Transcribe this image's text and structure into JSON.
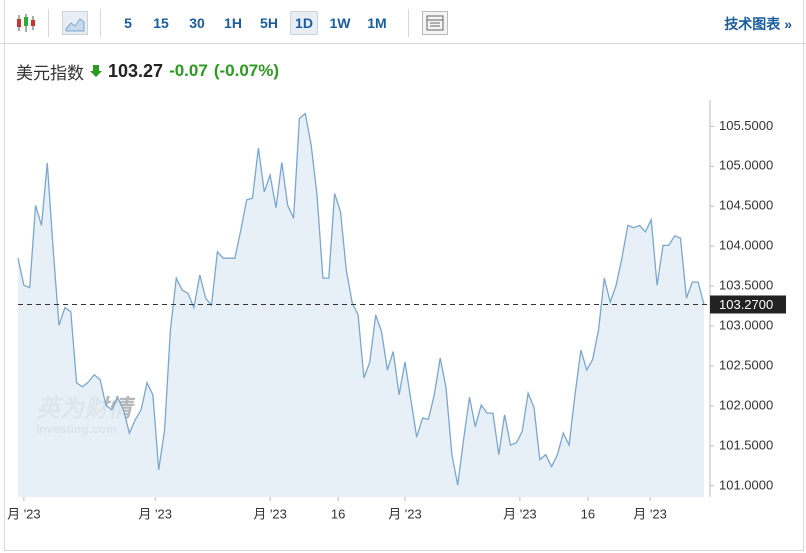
{
  "toolbar": {
    "intervals": [
      "5",
      "15",
      "30",
      "1H",
      "5H",
      "1D",
      "1W",
      "1M"
    ],
    "active_interval": "1D",
    "link": "技术图表 »"
  },
  "header": {
    "name": "美元指数",
    "price": "103.27",
    "change": "-0.07",
    "change_pct": "(-0.07%)"
  },
  "watermark": {
    "brand": "英为财情",
    "site": "Investing.com"
  },
  "chart_data": {
    "type": "area",
    "values": [
      103.85,
      103.51,
      103.48,
      104.51,
      104.26,
      105.04,
      103.95,
      103.01,
      103.23,
      103.18,
      102.29,
      102.24,
      102.3,
      102.39,
      102.33,
      102.01,
      101.95,
      102.1,
      101.95,
      101.66,
      101.83,
      101.95,
      102.29,
      102.14,
      101.2,
      101.7,
      102.95,
      103.6,
      103.45,
      103.41,
      103.23,
      103.64,
      103.35,
      103.26,
      103.93,
      103.85,
      103.85,
      103.85,
      104.2,
      104.58,
      104.6,
      105.23,
      104.68,
      104.89,
      104.48,
      105.05,
      104.51,
      104.35,
      105.6,
      105.66,
      105.26,
      104.64,
      103.6,
      103.6,
      104.66,
      104.43,
      103.7,
      103.29,
      103.14,
      102.35,
      102.55,
      103.14,
      102.93,
      102.45,
      102.68,
      102.14,
      102.55,
      102.08,
      101.61,
      101.85,
      101.83,
      102.14,
      102.6,
      102.23,
      101.39,
      101.01,
      101.58,
      102.11,
      101.74,
      102.01,
      101.91,
      101.91,
      101.39,
      101.89,
      101.51,
      101.54,
      101.68,
      102.16,
      101.98,
      101.33,
      101.39,
      101.24,
      101.39,
      101.66,
      101.51,
      102.14,
      102.7,
      102.45,
      102.58,
      102.95,
      103.6,
      103.3,
      103.51,
      103.85,
      104.26,
      104.23,
      104.26,
      104.18,
      104.33,
      103.51,
      104.01,
      104.01,
      104.13,
      104.1,
      103.35,
      103.55,
      103.55,
      103.27
    ],
    "color": "#7aa7cf",
    "fill": "#e4edf6",
    "xlim": [
      0,
      117
    ],
    "xticks": [
      {
        "value": 1,
        "label": "月 '23"
      },
      {
        "value": 23.4,
        "label": "月 '23"
      },
      {
        "value": 43,
        "label": "月 '23"
      },
      {
        "value": 54.6,
        "label": "16"
      },
      {
        "value": 66,
        "label": "月 '23"
      },
      {
        "value": 85.6,
        "label": "月 '23"
      },
      {
        "value": 97.2,
        "label": "16"
      },
      {
        "value": 107.8,
        "label": "月 '23"
      }
    ],
    "ylim": [
      100.86,
      105.83
    ],
    "yticks": [
      {
        "value": 101,
        "label": "101.0000"
      },
      {
        "value": 101.5,
        "label": "101.5000"
      },
      {
        "value": 102,
        "label": "102.0000"
      },
      {
        "value": 102.5,
        "label": "102.5000"
      },
      {
        "value": 103,
        "label": "103.0000"
      },
      {
        "value": 103.5,
        "label": "103.5000"
      },
      {
        "value": 104,
        "label": "104.0000"
      },
      {
        "value": 104.5,
        "label": "104.5000"
      },
      {
        "value": 105,
        "label": "105.0000"
      },
      {
        "value": 105.5,
        "label": "105.5000"
      }
    ],
    "last_value": {
      "value": 103.27,
      "label": "103.2700"
    }
  }
}
